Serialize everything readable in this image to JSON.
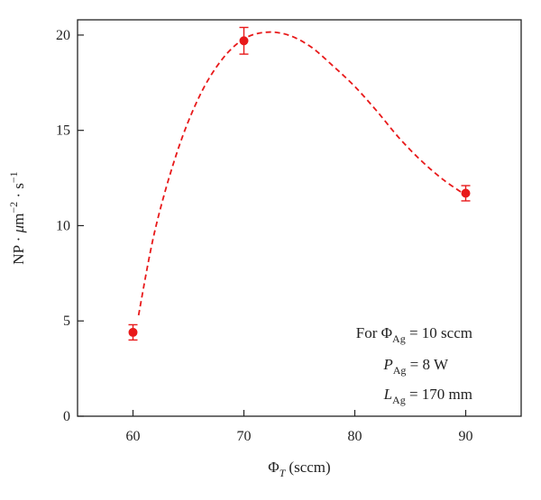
{
  "chart_data": {
    "type": "scatter",
    "x": [
      60,
      70,
      90
    ],
    "y": [
      4.4,
      19.7,
      11.7
    ],
    "yerr": [
      0.4,
      0.7,
      0.4
    ],
    "fit_curve": {
      "x": [
        60.5,
        62,
        64,
        66,
        68,
        70,
        72,
        74,
        76,
        78,
        80,
        82,
        84,
        86,
        88,
        90
      ],
      "y": [
        5.3,
        9.8,
        13.9,
        16.8,
        18.7,
        19.8,
        20.15,
        20.0,
        19.4,
        18.4,
        17.3,
        16.0,
        14.6,
        13.4,
        12.4,
        11.6
      ]
    },
    "xlim": [
      55,
      95
    ],
    "ylim": [
      0,
      20.8
    ],
    "xticks": [
      60,
      70,
      80,
      90
    ],
    "yticks": [
      0,
      5,
      10,
      15,
      20
    ],
    "xlabel": {
      "symbol": "Φ",
      "subscript": "T",
      "unit": "(sccm)"
    },
    "ylabel": {
      "base": "NP · ",
      "mu": "μ",
      "m": "m",
      "exp1": "−2",
      "mid": " · s",
      "exp2": "−1"
    },
    "annotations": [
      {
        "pre": "For ",
        "symbol": "Φ",
        "subscript": "Ag",
        "value": " = 10 sccm"
      },
      {
        "pre": "",
        "symbol": "P",
        "subscript": "Ag",
        "value": " = 8 W"
      },
      {
        "pre": "",
        "symbol": "L",
        "subscript": "Ag",
        "value": " = 170 mm"
      }
    ],
    "colors": {
      "series": "#e8191a",
      "axes": "#222222"
    },
    "grid": false
  }
}
